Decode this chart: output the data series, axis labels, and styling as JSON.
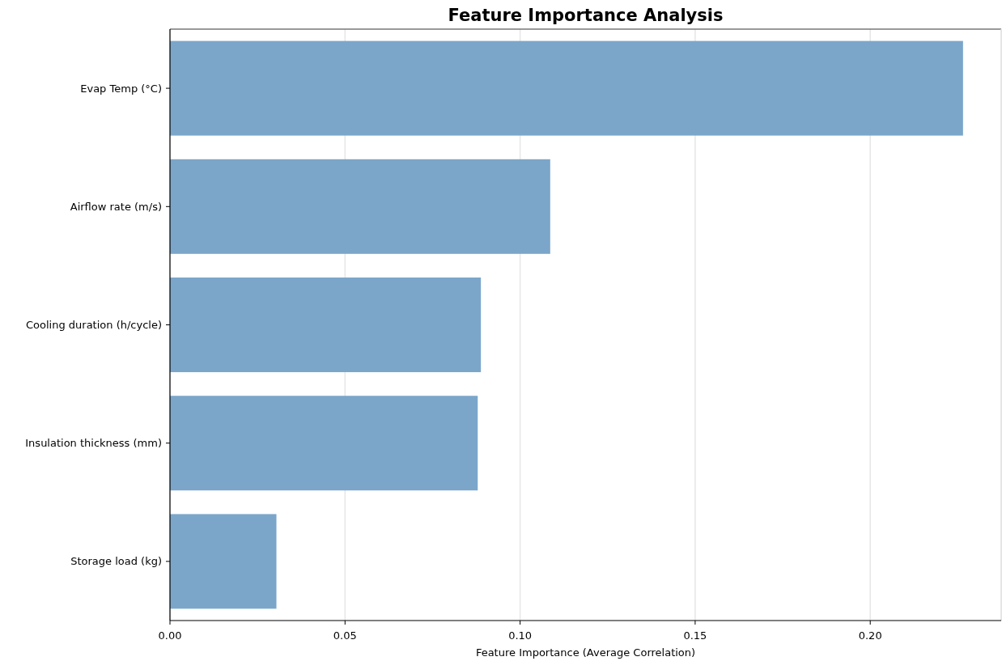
{
  "chart_data": {
    "type": "bar",
    "orientation": "horizontal",
    "title": "Feature Importance Analysis",
    "xlabel": "Feature Importance (Average Correlation)",
    "categories": [
      "Evap Temp (°C)",
      "Airflow rate (m/s)",
      "Cooling duration (h/cycle)",
      "Insulation thickness (mm)",
      "Storage load (kg)"
    ],
    "values": [
      0.2265,
      0.1086,
      0.0888,
      0.0879,
      0.0304
    ],
    "color": "#7ba6ca",
    "xlim": [
      0,
      0.2374
    ],
    "xticks": [
      {
        "value": 0,
        "label": "0.00"
      },
      {
        "value": 0.05,
        "label": "0.05"
      },
      {
        "value": 0.1,
        "label": "0.10"
      },
      {
        "value": 0.15,
        "label": "0.15"
      },
      {
        "value": 0.2,
        "label": "0.20"
      }
    ],
    "grid": "x"
  }
}
